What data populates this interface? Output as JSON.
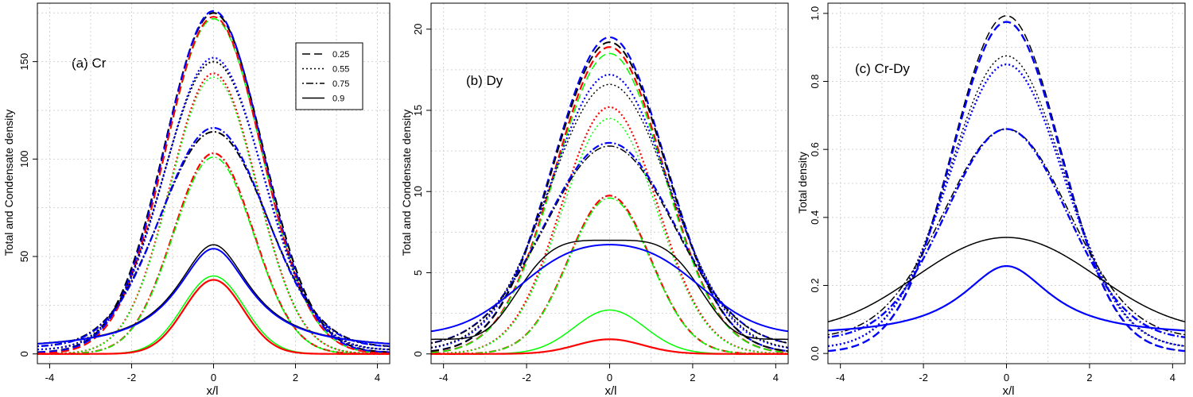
{
  "figure": {
    "type": "multi-panel line chart"
  },
  "colors": {
    "black": "#000000",
    "blue": "#0000ff",
    "red": "#ff0000",
    "green": "#00ff00",
    "grid": "#d3d3d3"
  },
  "chart_data": [
    {
      "type": "line",
      "title": "(a) Cr",
      "xlabel": "x/l",
      "ylabel": "Total and Condensate density",
      "xlim": [
        -4.3,
        4.3
      ],
      "ylim": [
        -5,
        180
      ],
      "xticks": [
        -4,
        -2,
        0,
        2,
        4
      ],
      "yticks": [
        0,
        50,
        100,
        150
      ],
      "grid": true,
      "legend": {
        "placement": "top-right",
        "entries": [
          {
            "label": "0.25",
            "dash": "dashed"
          },
          {
            "label": "0.55",
            "dash": "dotted"
          },
          {
            "label": "0.75",
            "dash": "dotdash"
          },
          {
            "label": "0.9",
            "dash": "solid"
          }
        ]
      },
      "series": [
        {
          "param": "0.25",
          "color": "black",
          "dash": "dashed",
          "shape": "gauss",
          "peak": 175,
          "width": 1.2,
          "base": 0.6,
          "width_line": 2.2
        },
        {
          "param": "0.25",
          "color": "blue",
          "dash": "dashed",
          "shape": "gauss",
          "peak": 176,
          "width": 1.18,
          "base": 0.6,
          "width_line": 2.2
        },
        {
          "param": "0.25",
          "color": "green",
          "dash": "dashed",
          "shape": "gauss",
          "peak": 172,
          "width": 1.17,
          "base": 0,
          "width_line": 1.5
        },
        {
          "param": "0.25",
          "color": "red",
          "dash": "dashed",
          "shape": "gauss",
          "peak": 173,
          "width": 1.17,
          "base": 0,
          "width_line": 2.0
        },
        {
          "param": "0.55",
          "color": "black",
          "dash": "dotted",
          "shape": "gauss",
          "peak": 150,
          "width": 1.22,
          "base": 2.0,
          "width_line": 2.0
        },
        {
          "param": "0.55",
          "color": "blue",
          "dash": "dotted",
          "shape": "gauss",
          "peak": 152,
          "width": 1.2,
          "base": 2.0,
          "width_line": 2.2
        },
        {
          "param": "0.55",
          "color": "red",
          "dash": "dotted",
          "shape": "gauss",
          "peak": 144,
          "width": 1.05,
          "base": 0,
          "width_line": 2.2
        },
        {
          "param": "0.55",
          "color": "green",
          "dash": "dotted",
          "shape": "gauss",
          "peak": 142,
          "width": 1.05,
          "base": 0,
          "width_line": 1.5
        },
        {
          "param": "0.75",
          "color": "black",
          "dash": "dotdash",
          "shape": "gauss",
          "peak": 114,
          "width": 1.3,
          "base": 3.5,
          "width_line": 2.0
        },
        {
          "param": "0.75",
          "color": "blue",
          "dash": "dotdash",
          "shape": "gauss",
          "peak": 116,
          "width": 1.28,
          "base": 3.5,
          "width_line": 2.2
        },
        {
          "param": "0.75",
          "color": "red",
          "dash": "dotdash",
          "shape": "gauss",
          "peak": 103,
          "width": 0.98,
          "base": 0,
          "width_line": 2.2
        },
        {
          "param": "0.75",
          "color": "green",
          "dash": "dotdash",
          "shape": "gauss",
          "peak": 101,
          "width": 0.98,
          "base": 0,
          "width_line": 1.5
        },
        {
          "param": "0.9",
          "color": "black",
          "dash": "solid",
          "shape": "lorentz",
          "peak": 56,
          "width": 1.1,
          "base": 2.0,
          "width_line": 1.5
        },
        {
          "param": "0.9",
          "color": "blue",
          "dash": "solid",
          "shape": "lorentz",
          "peak": 54,
          "width": 1.1,
          "base": 2.0,
          "width_line": 2.0
        },
        {
          "param": "0.9",
          "color": "green",
          "dash": "solid",
          "shape": "gauss",
          "peak": 40,
          "width": 0.75,
          "base": 0,
          "width_line": 1.5
        },
        {
          "param": "0.9",
          "color": "red",
          "dash": "solid",
          "shape": "gauss",
          "peak": 38,
          "width": 0.72,
          "base": 0,
          "width_line": 2.2
        }
      ]
    },
    {
      "type": "line",
      "title": "(b) Dy",
      "xlabel": "x/l",
      "ylabel": "Total and Condensate density",
      "xlim": [
        -4.3,
        4.3
      ],
      "ylim": [
        -0.6,
        21.6
      ],
      "xticks": [
        -4,
        -2,
        0,
        2,
        4
      ],
      "yticks": [
        0,
        5,
        10,
        15,
        20
      ],
      "grid": true,
      "series": [
        {
          "param": "0.25",
          "color": "blue",
          "dash": "dashed",
          "shape": "gauss",
          "peak": 19.5,
          "width": 1.35,
          "base": 0.05,
          "width_line": 2.2
        },
        {
          "param": "0.25",
          "color": "black",
          "dash": "dashed",
          "shape": "gauss",
          "peak": 19.2,
          "width": 1.35,
          "base": 0.05,
          "width_line": 2.0
        },
        {
          "param": "0.25",
          "color": "red",
          "dash": "dashed",
          "shape": "gauss",
          "peak": 18.9,
          "width": 1.3,
          "base": 0,
          "width_line": 2.2
        },
        {
          "param": "0.25",
          "color": "green",
          "dash": "dashed",
          "shape": "gauss",
          "peak": 18.5,
          "width": 1.3,
          "base": 0,
          "width_line": 1.5
        },
        {
          "param": "0.55",
          "color": "blue",
          "dash": "dotted",
          "shape": "gauss",
          "peak": 17.2,
          "width": 1.42,
          "base": 0.2,
          "width_line": 2.2
        },
        {
          "param": "0.55",
          "color": "black",
          "dash": "dotted",
          "shape": "gauss",
          "peak": 16.6,
          "width": 1.45,
          "base": 0.2,
          "width_line": 1.5
        },
        {
          "param": "0.55",
          "color": "red",
          "dash": "dotted",
          "shape": "gauss",
          "peak": 15.2,
          "width": 1.15,
          "base": 0,
          "width_line": 2.2
        },
        {
          "param": "0.55",
          "color": "green",
          "dash": "dotted",
          "shape": "gauss",
          "peak": 14.5,
          "width": 1.15,
          "base": 0,
          "width_line": 1.5
        },
        {
          "param": "0.75",
          "color": "blue",
          "dash": "dotdash",
          "shape": "gauss",
          "peak": 13.0,
          "width": 1.55,
          "base": 0.4,
          "width_line": 2.2
        },
        {
          "param": "0.75",
          "color": "black",
          "dash": "dotdash",
          "shape": "gauss",
          "peak": 12.8,
          "width": 1.55,
          "base": 0.4,
          "width_line": 1.5
        },
        {
          "param": "0.75",
          "color": "red",
          "dash": "dotdash",
          "shape": "gauss",
          "peak": 9.75,
          "width": 0.98,
          "base": 0,
          "width_line": 2.2
        },
        {
          "param": "0.75",
          "color": "green",
          "dash": "dotdash",
          "shape": "gauss",
          "peak": 9.6,
          "width": 0.98,
          "base": 0,
          "width_line": 1.5
        },
        {
          "param": "0.9",
          "color": "black",
          "dash": "solid",
          "shape": "flat",
          "peak": 7.0,
          "width": 2.4,
          "base": 0.9,
          "width_line": 1.5
        },
        {
          "param": "0.9",
          "color": "blue",
          "dash": "solid",
          "shape": "double",
          "peak": 6.1,
          "width": 1.3,
          "sep": 1.1,
          "base": 1.2,
          "width_line": 2.0
        },
        {
          "param": "0.9",
          "color": "green",
          "dash": "solid",
          "shape": "gauss",
          "peak": 2.7,
          "width": 0.85,
          "base": 0,
          "width_line": 1.5
        },
        {
          "param": "0.9",
          "color": "red",
          "dash": "solid",
          "shape": "gauss",
          "peak": 0.9,
          "width": 0.8,
          "base": 0,
          "width_line": 2.2
        }
      ]
    },
    {
      "type": "line",
      "title": "(c) Cr-Dy",
      "xlabel": "x/l",
      "ylabel": "Total density",
      "xlim": [
        -4.3,
        4.3
      ],
      "ylim": [
        -0.03,
        1.03
      ],
      "xticks": [
        -4,
        -2,
        0,
        2,
        4
      ],
      "yticks": [
        0.0,
        0.2,
        0.4,
        0.6,
        0.8,
        1.0
      ],
      "ytick_labels": [
        "0.0",
        "0.2",
        "0.4",
        "0.6",
        "0.8",
        "1.0"
      ],
      "grid": true,
      "series": [
        {
          "param": "0.25",
          "color": "black",
          "dash": "dashed",
          "shape": "gauss",
          "peak": 0.993,
          "width": 1.3,
          "base": 0.003,
          "width_line": 1.5
        },
        {
          "param": "0.25",
          "color": "blue",
          "dash": "dashed",
          "shape": "gauss",
          "peak": 0.975,
          "width": 1.3,
          "base": 0.003,
          "width_line": 2.4
        },
        {
          "param": "0.55",
          "color": "black",
          "dash": "dotted",
          "shape": "gauss",
          "peak": 0.875,
          "width": 1.38,
          "base": 0.015,
          "width_line": 1.5
        },
        {
          "param": "0.55",
          "color": "blue",
          "dash": "dotted",
          "shape": "gauss",
          "peak": 0.85,
          "width": 1.38,
          "base": 0.015,
          "width_line": 2.4
        },
        {
          "param": "0.75",
          "color": "black",
          "dash": "dotdash",
          "shape": "gauss",
          "peak": 0.66,
          "width": 1.5,
          "base": 0.045,
          "width_line": 1.5
        },
        {
          "param": "0.75",
          "color": "blue",
          "dash": "dotdash",
          "shape": "gauss",
          "peak": 0.66,
          "width": 1.45,
          "base": 0.04,
          "width_line": 2.4
        },
        {
          "param": "0.9",
          "color": "black",
          "dash": "solid",
          "shape": "double",
          "peak": 0.31,
          "width": 1.7,
          "sep": 1.05,
          "base": 0.065,
          "width_line": 1.5
        },
        {
          "param": "0.9",
          "color": "blue",
          "dash": "solid",
          "shape": "lorentz",
          "peak": 0.257,
          "width": 1.3,
          "base": 0.05,
          "width_line": 2.2
        }
      ]
    }
  ]
}
